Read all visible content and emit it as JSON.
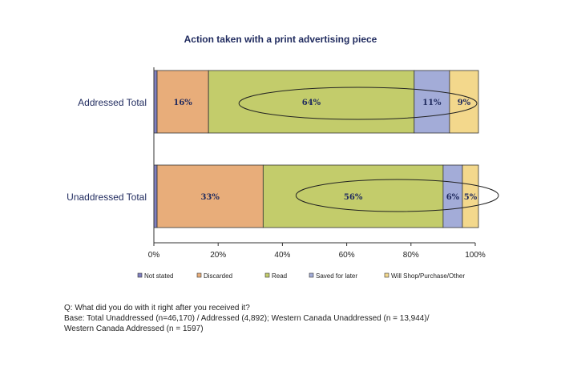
{
  "chart_data": {
    "type": "bar",
    "orientation": "horizontal",
    "stacked": true,
    "title": "Action taken with a print advertising piece",
    "categories": [
      "Addressed Total",
      "Unaddressed Total"
    ],
    "series": [
      {
        "name": "Not stated",
        "color": "#8080c0",
        "values": [
          1,
          1
        ],
        "labels": [
          "",
          ""
        ]
      },
      {
        "name": "Discarded",
        "color": "#e8ad7a",
        "values": [
          16,
          33
        ],
        "labels": [
          "16%",
          "33%"
        ]
      },
      {
        "name": "Read",
        "color": "#c3cc6b",
        "values": [
          64,
          56
        ],
        "labels": [
          "64%",
          "56%"
        ]
      },
      {
        "name": "Saved for later",
        "color": "#a3acd8",
        "values": [
          11,
          6
        ],
        "labels": [
          "11%",
          "6%"
        ]
      },
      {
        "name": "Will Shop/Purchase/Other",
        "color": "#f3d88c",
        "values": [
          9,
          5
        ],
        "labels": [
          "9%",
          "5%"
        ]
      }
    ],
    "xlim": [
      0,
      100
    ],
    "xticks": [
      "0%",
      "20%",
      "40%",
      "60%",
      "80%",
      "100%"
    ],
    "legend_position": "bottom",
    "annotations": "ellipses around Read, Saved for later and Will Shop/Purchase/Other segments"
  },
  "footnote": {
    "line1": "Q: What did you do with it right after you received it?",
    "line2": "Base: Total Unaddressed (n=46,170) / Addressed (4,892); Western Canada Unaddressed (n = 13,944)/",
    "line3": "Western Canada Addressed (n = 1597)"
  }
}
